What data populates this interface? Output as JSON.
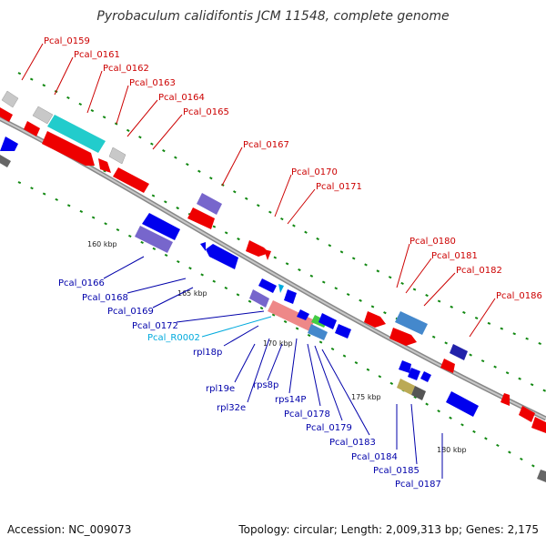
{
  "title": "Pyrobaculum calidifontis JCM 11548, complete genome",
  "footer": {
    "accession": "Accession: NC_009073",
    "summary": "Topology: circular; Length: 2,009,313 bp; Genes: 2,175"
  },
  "scale_labels": [
    "160 kbp",
    "165 kbp",
    "170 kbp",
    "175 kbp",
    "180 kbp"
  ],
  "colors": {
    "forward_label": "#cc0000",
    "reverse_label": "#0000aa",
    "rna_label": "#00aadd",
    "backbone": "#999999",
    "tick": "#118811"
  },
  "forward_genes": [
    "Pcal_0159",
    "Pcal_0161",
    "Pcal_0162",
    "Pcal_0163",
    "Pcal_0164",
    "Pcal_0165",
    "Pcal_0167",
    "Pcal_0170",
    "Pcal_0171",
    "Pcal_0180",
    "Pcal_0181",
    "Pcal_0182",
    "Pcal_0186"
  ],
  "reverse_genes": [
    "Pcal_0166",
    "Pcal_0168",
    "Pcal_0169",
    "Pcal_0172",
    "Pcal_R0002",
    "rpl18p",
    "rpl19e",
    "rpl32e",
    "rps8p",
    "rps14P",
    "Pcal_0178",
    "Pcal_0179",
    "Pcal_0183",
    "Pcal_0184",
    "Pcal_0185",
    "Pcal_0187"
  ]
}
